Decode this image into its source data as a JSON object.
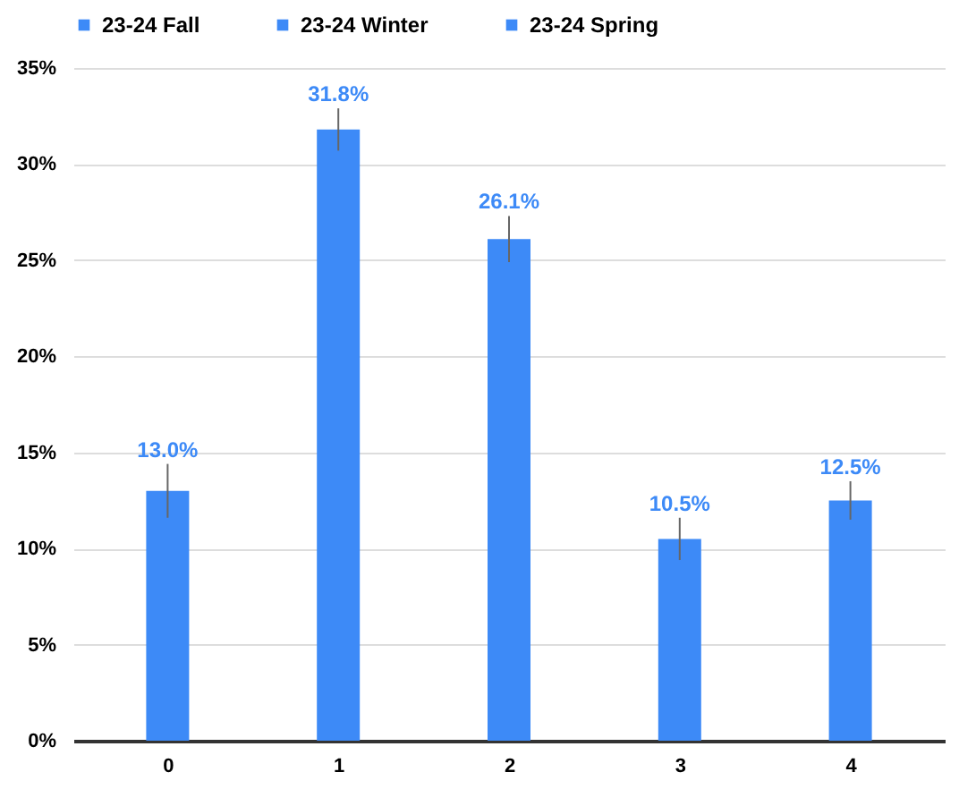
{
  "chart_data": {
    "type": "bar",
    "categories": [
      "0",
      "1",
      "2",
      "3",
      "4"
    ],
    "series": [
      {
        "name": "23-24 Fall",
        "color": "#3d8af7",
        "values": [
          13.0,
          31.8,
          26.1,
          10.5,
          12.5
        ],
        "errors": [
          1.4,
          1.1,
          1.2,
          1.1,
          1.0
        ],
        "value_labels": [
          "13.0%",
          "31.8%",
          "26.1%",
          "10.5%",
          "12.5%"
        ]
      },
      {
        "name": "23-24 Winter",
        "color": "#3d8af7",
        "values": [
          null,
          null,
          null,
          null,
          null
        ]
      },
      {
        "name": "23-24 Spring",
        "color": "#3d8af7",
        "values": [
          null,
          null,
          null,
          null,
          null
        ]
      }
    ],
    "ylim": [
      0,
      35
    ],
    "yticks": [
      {
        "value": 0,
        "label": "0%"
      },
      {
        "value": 5,
        "label": "5%"
      },
      {
        "value": 10,
        "label": "10%"
      },
      {
        "value": 15,
        "label": "15%"
      },
      {
        "value": 20,
        "label": "20%"
      },
      {
        "value": 25,
        "label": "25%"
      },
      {
        "value": 30,
        "label": "30%"
      },
      {
        "value": 35,
        "label": "35%"
      }
    ],
    "grid": "y",
    "legend": "top"
  }
}
